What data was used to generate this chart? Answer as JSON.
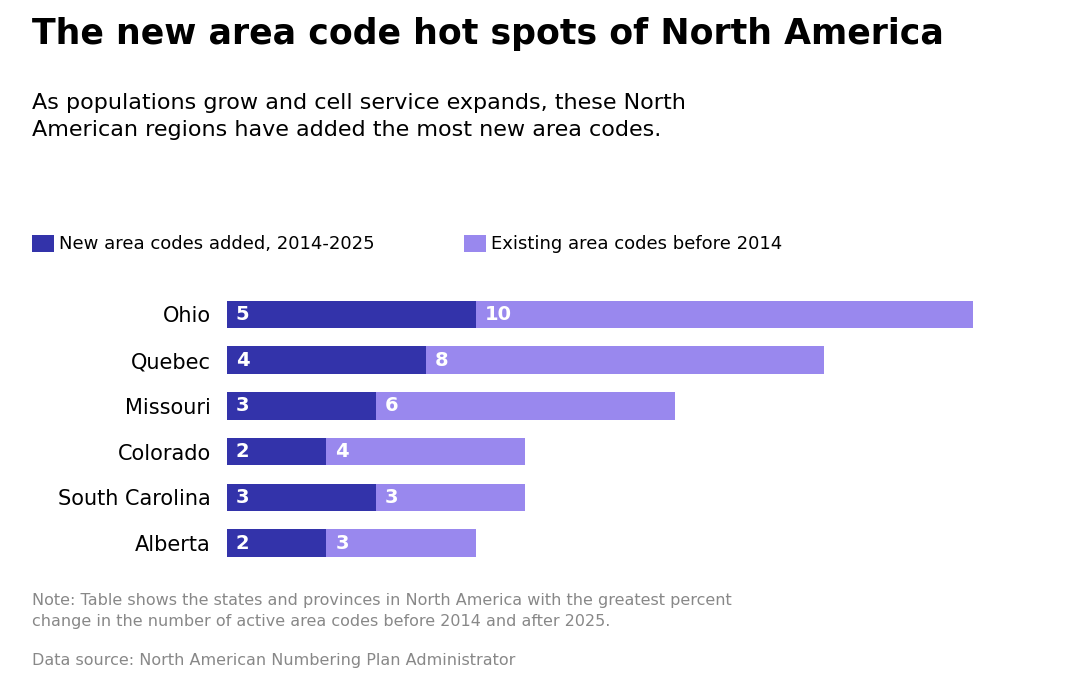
{
  "title": "The new area code hot spots of North America",
  "subtitle": "As populations grow and cell service expands, these North\nAmerican regions have added the most new area codes.",
  "legend_new": "New area codes added, 2014-2025",
  "legend_existing": "Existing area codes before 2014",
  "note": "Note: Table shows the states and provinces in North America with the greatest percent\nchange in the number of active area codes before 2014 and after 2025.",
  "source": "Data source: North American Numbering Plan Administrator",
  "categories": [
    "Ohio",
    "Quebec",
    "Missouri",
    "Colorado",
    "South Carolina",
    "Alberta"
  ],
  "new_codes": [
    5,
    4,
    3,
    2,
    3,
    2
  ],
  "existing_codes": [
    10,
    8,
    6,
    4,
    3,
    3
  ],
  "color_new": "#3333aa",
  "color_existing": "#9988ee",
  "background_color": "#ffffff",
  "title_fontsize": 25,
  "subtitle_fontsize": 16,
  "legend_fontsize": 13,
  "label_fontsize": 15,
  "bar_label_fontsize": 14,
  "note_fontsize": 11.5,
  "note_color": "#888888",
  "bar_height": 0.6
}
